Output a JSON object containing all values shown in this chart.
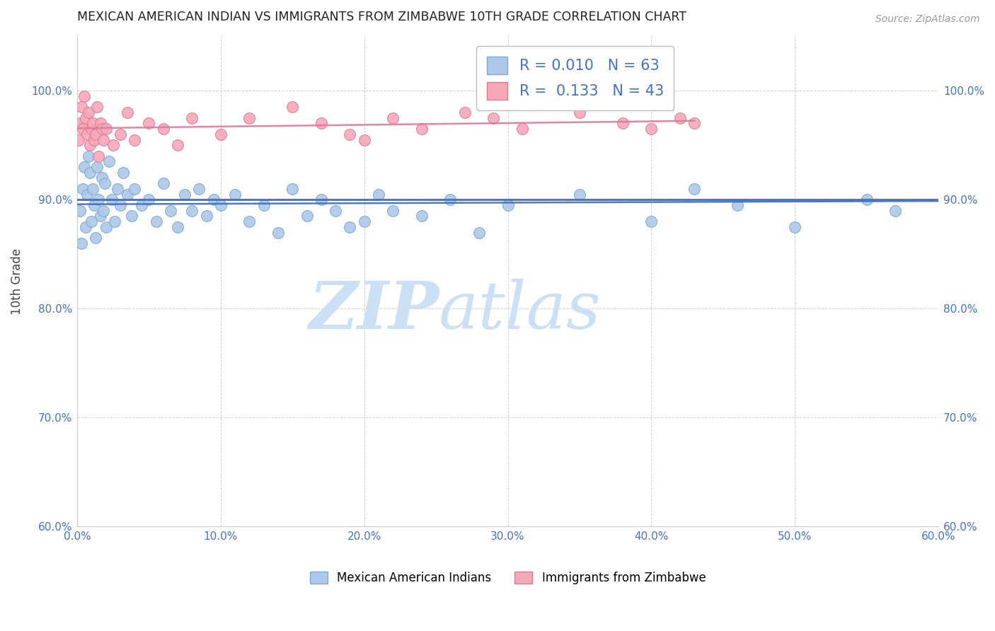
{
  "title": "MEXICAN AMERICAN INDIAN VS IMMIGRANTS FROM ZIMBABWE 10TH GRADE CORRELATION CHART",
  "source": "Source: ZipAtlas.com",
  "ylabel": "10th Grade",
  "xlabel_ticks": [
    "0.0%",
    "10.0%",
    "20.0%",
    "30.0%",
    "40.0%",
    "50.0%",
    "60.0%"
  ],
  "xlabel_vals": [
    0.0,
    10.0,
    20.0,
    30.0,
    40.0,
    50.0,
    60.0
  ],
  "ylabel_ticks_left": [
    "60.0%",
    "70.0%",
    "80.0%",
    "90.0%",
    "100.0%"
  ],
  "ylabel_ticks_right": [
    "60.0%",
    "70.0%",
    "80.0%",
    "90.0%",
    "100.0%"
  ],
  "ylabel_vals": [
    60.0,
    70.0,
    80.0,
    90.0,
    100.0
  ],
  "xlim": [
    0.0,
    60.0
  ],
  "ylim": [
    60.0,
    105.0
  ],
  "blue_R": 0.01,
  "blue_N": 63,
  "pink_R": 0.133,
  "pink_N": 43,
  "blue_color": "#adc8e8",
  "pink_color": "#f5a8b8",
  "blue_edge_color": "#7aaad0",
  "pink_edge_color": "#e07898",
  "blue_line_color": "#4472c4",
  "pink_line_color": "#e07898",
  "blue_hline_color": "#4472c4",
  "blue_hline_y": 90.0,
  "legend_blue_label": "Mexican American Indians",
  "legend_pink_label": "Immigrants from Zimbabwe",
  "blue_x": [
    0.2,
    0.3,
    0.4,
    0.5,
    0.6,
    0.7,
    0.8,
    0.9,
    1.0,
    1.1,
    1.2,
    1.3,
    1.4,
    1.5,
    1.6,
    1.7,
    1.8,
    1.9,
    2.0,
    2.2,
    2.4,
    2.6,
    2.8,
    3.0,
    3.2,
    3.5,
    3.8,
    4.0,
    4.5,
    5.0,
    5.5,
    6.0,
    6.5,
    7.0,
    7.5,
    8.0,
    8.5,
    9.0,
    9.5,
    10.0,
    11.0,
    12.0,
    13.0,
    14.0,
    15.0,
    16.0,
    17.0,
    18.0,
    19.0,
    20.0,
    21.0,
    22.0,
    24.0,
    26.0,
    28.0,
    30.0,
    35.0,
    40.0,
    43.0,
    46.0,
    50.0,
    55.0,
    57.0
  ],
  "blue_y": [
    89.0,
    86.0,
    91.0,
    93.0,
    87.5,
    90.5,
    94.0,
    92.5,
    88.0,
    91.0,
    89.5,
    86.5,
    93.0,
    90.0,
    88.5,
    92.0,
    89.0,
    91.5,
    87.5,
    93.5,
    90.0,
    88.0,
    91.0,
    89.5,
    92.5,
    90.5,
    88.5,
    91.0,
    89.5,
    90.0,
    88.0,
    91.5,
    89.0,
    87.5,
    90.5,
    89.0,
    91.0,
    88.5,
    90.0,
    89.5,
    90.5,
    88.0,
    89.5,
    87.0,
    91.0,
    88.5,
    90.0,
    89.0,
    87.5,
    88.0,
    90.5,
    89.0,
    88.5,
    90.0,
    87.0,
    89.5,
    90.5,
    88.0,
    91.0,
    89.5,
    87.5,
    90.0,
    89.0
  ],
  "pink_x": [
    0.1,
    0.2,
    0.3,
    0.4,
    0.5,
    0.6,
    0.7,
    0.8,
    0.9,
    1.0,
    1.1,
    1.2,
    1.3,
    1.4,
    1.5,
    1.6,
    1.7,
    1.8,
    2.0,
    2.5,
    3.0,
    3.5,
    4.0,
    5.0,
    6.0,
    7.0,
    8.0,
    10.0,
    12.0,
    15.0,
    17.0,
    19.0,
    20.0,
    22.0,
    24.0,
    27.0,
    29.0,
    31.0,
    35.0,
    38.0,
    40.0,
    42.0,
    43.0
  ],
  "pink_y": [
    95.5,
    97.0,
    98.5,
    96.5,
    99.5,
    97.5,
    96.0,
    98.0,
    95.0,
    96.5,
    97.0,
    95.5,
    96.0,
    98.5,
    94.0,
    97.0,
    96.5,
    95.5,
    96.5,
    95.0,
    96.0,
    98.0,
    95.5,
    97.0,
    96.5,
    95.0,
    97.5,
    96.0,
    97.5,
    98.5,
    97.0,
    96.0,
    95.5,
    97.5,
    96.5,
    98.0,
    97.5,
    96.5,
    98.0,
    97.0,
    96.5,
    97.5,
    97.0
  ],
  "zipatlas_text_zip": "ZIP",
  "zipatlas_text_atlas": "atlas",
  "zipatlas_color": "#cce0f5",
  "background_color": "#ffffff",
  "grid_color": "#cccccc",
  "tick_color": "#4472c4"
}
